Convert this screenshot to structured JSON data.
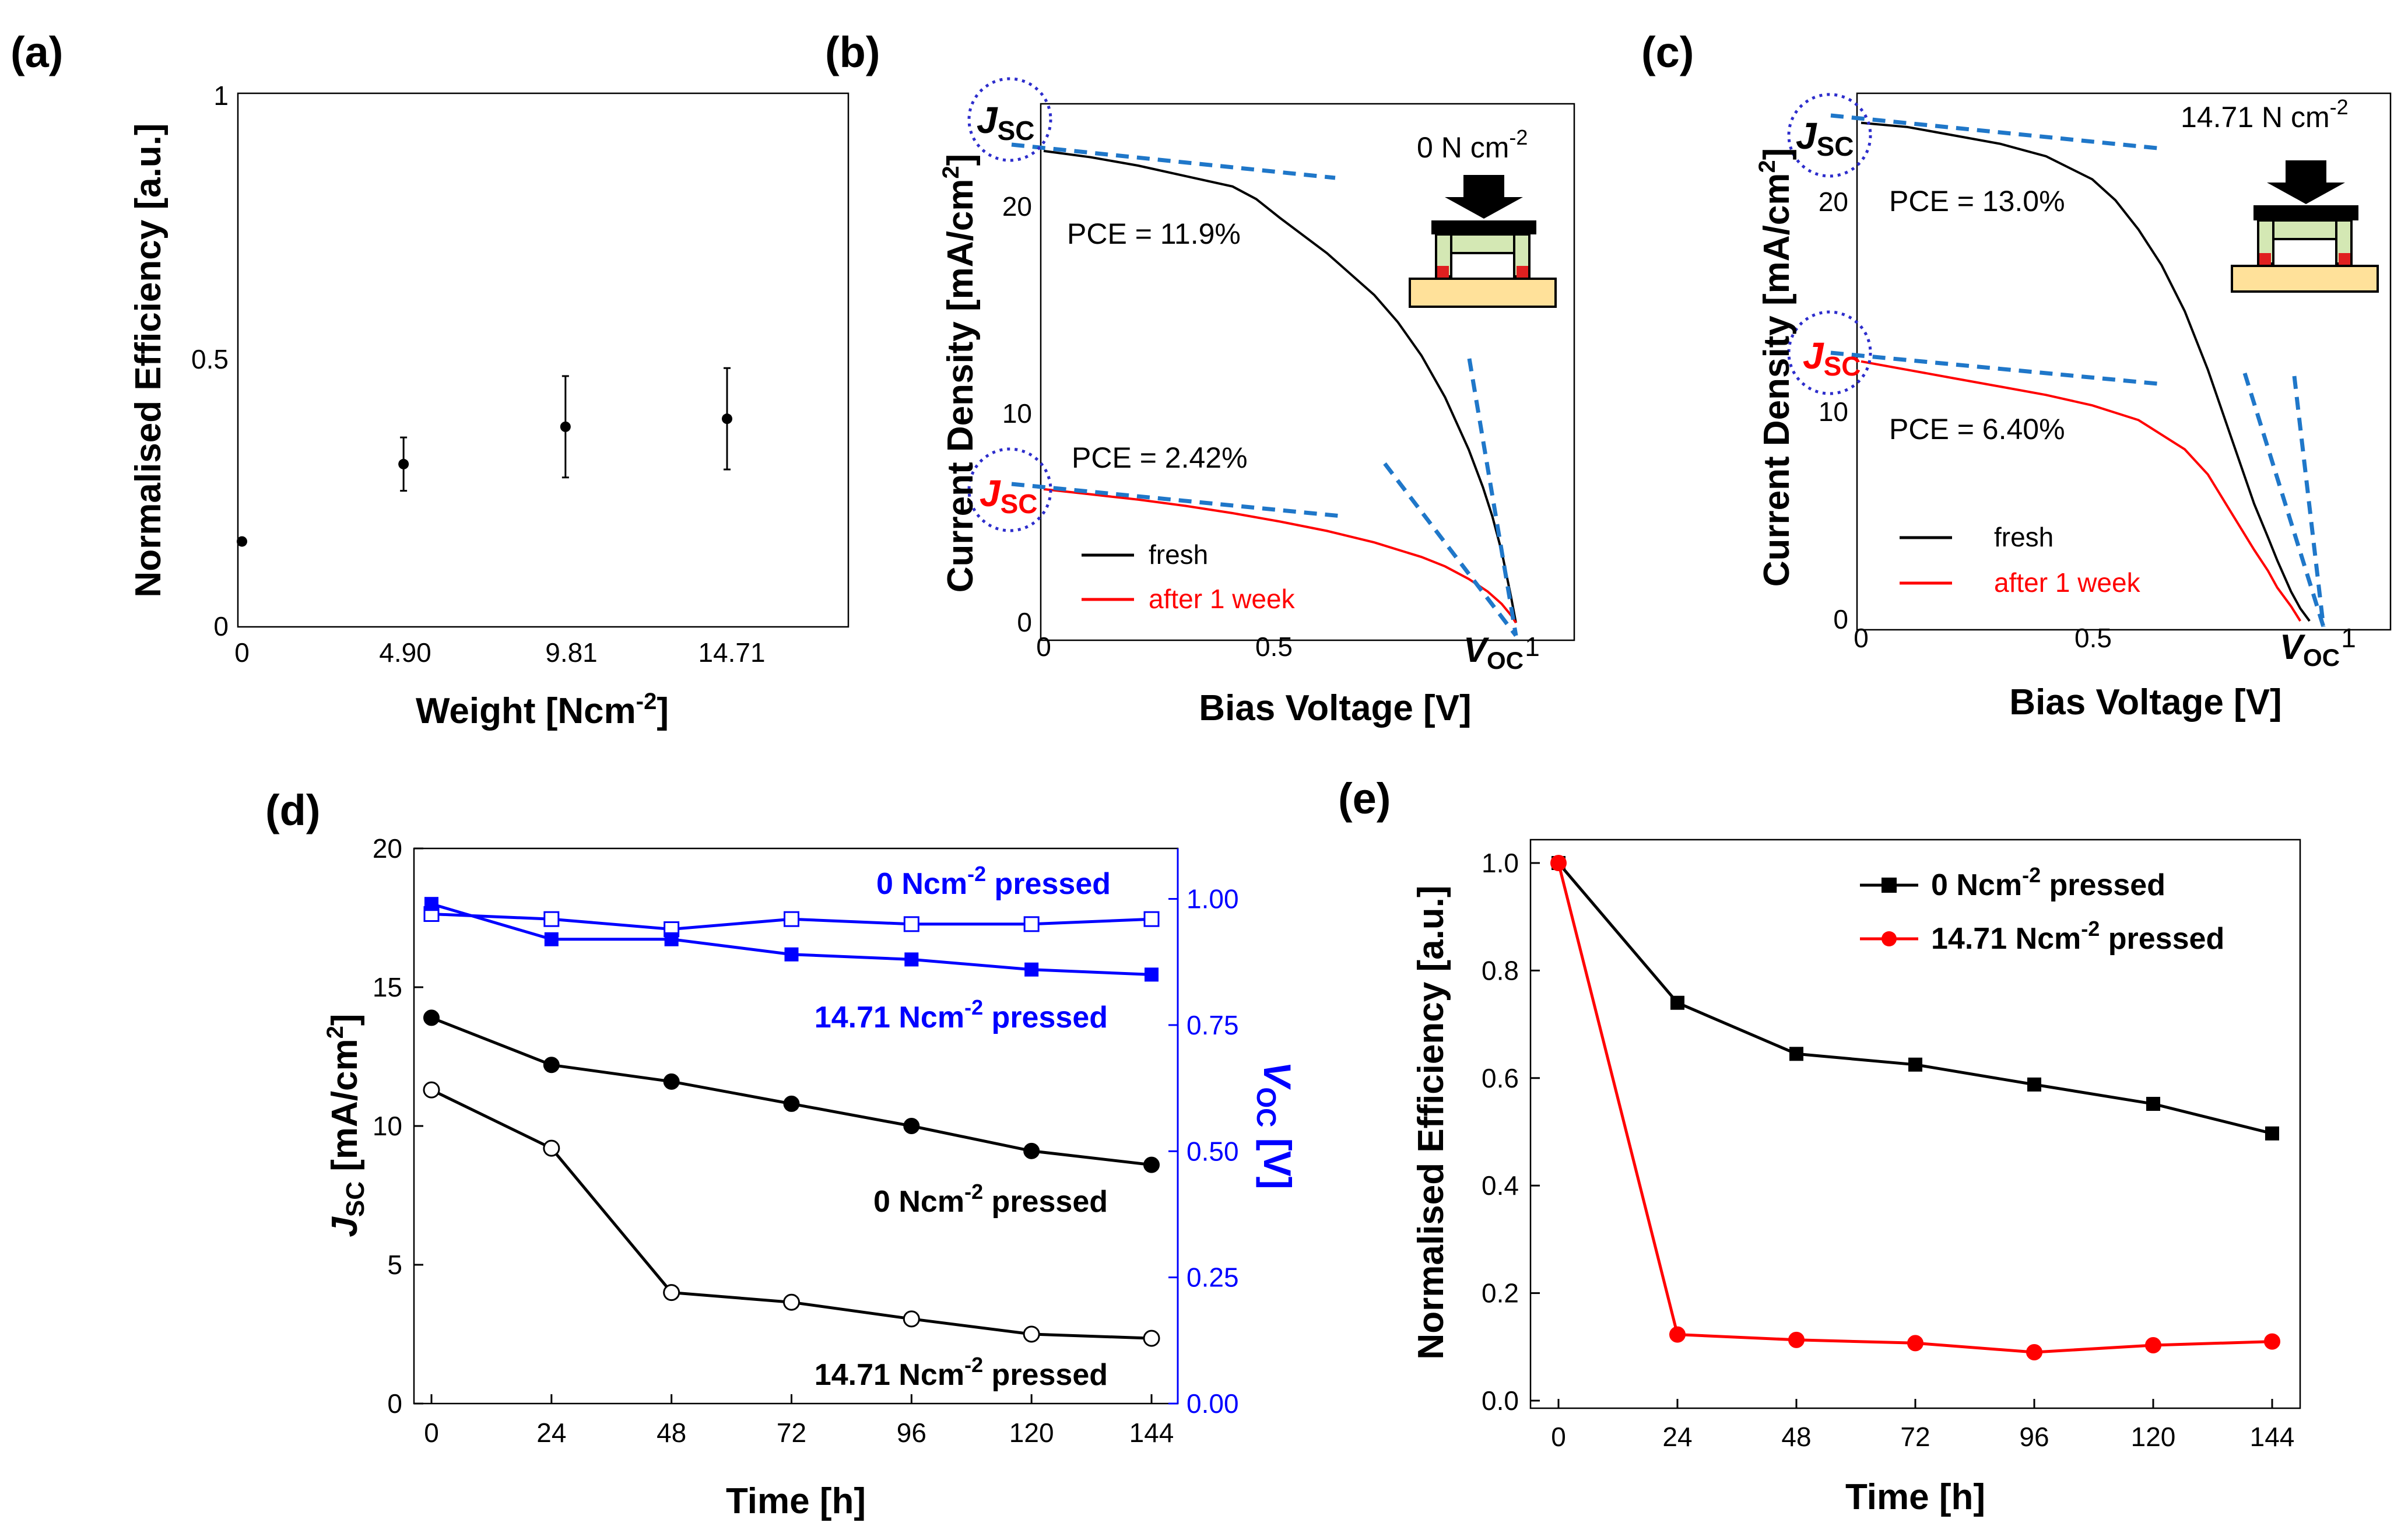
{
  "panels": [
    "(a)",
    "(b)",
    "(c)",
    "(d)",
    "(e)"
  ],
  "chart_data": [
    {
      "id": "a",
      "type": "scatter",
      "xlabel_main": "Weight [Ncm",
      "xlabel_sup": "-2",
      "xlabel_end": "]",
      "ylabel": "Normalised Efficiency [a.u.]",
      "ylim": [
        0,
        1
      ],
      "yticks": [
        "0",
        "0.5",
        "1"
      ],
      "xticks": [
        "0",
        "4.90",
        "9.81",
        "14.71"
      ],
      "x": [
        0,
        4.9,
        9.81,
        14.71
      ],
      "values": [
        0.16,
        0.305,
        0.375,
        0.39
      ],
      "errors": [
        0.0,
        0.05,
        0.095,
        0.095
      ]
    },
    {
      "id": "b",
      "type": "line",
      "xlabel": "Bias Voltage [V]",
      "ylabel_main": "Current Density [mA/cm",
      "ylabel_sup": "2",
      "ylabel_end": "]",
      "xlim": [
        0,
        1.15
      ],
      "ylim": [
        0,
        25
      ],
      "xticks": [
        "0",
        "0.5",
        "1"
      ],
      "yticks": [
        "0",
        "10",
        "20"
      ],
      "jsc_symbol": "J",
      "jsc_sub": "SC",
      "voc_symbol": "V",
      "voc_sub": "OC",
      "weight_main": "0 N cm",
      "weight_sup": "-2",
      "pce_fresh": "PCE = 11.9%",
      "pce_aged": "PCE = 2.42%",
      "legend": [
        "fresh",
        "after 1 week"
      ],
      "series": [
        {
          "name": "fresh",
          "color": "#000000",
          "x": [
            0,
            0.1,
            0.2,
            0.3,
            0.4,
            0.45,
            0.5,
            0.6,
            0.7,
            0.75,
            0.8,
            0.85,
            0.9,
            0.93,
            0.95,
            0.97,
            0.99,
            1.0
          ],
          "y": [
            22.6,
            22.3,
            21.9,
            21.4,
            20.9,
            20.3,
            19.4,
            17.7,
            15.7,
            14.4,
            12.8,
            10.8,
            8.3,
            6.5,
            5.1,
            3.4,
            1.2,
            0
          ]
        },
        {
          "name": "after 1 week",
          "color": "#ff0000",
          "x": [
            0,
            0.1,
            0.2,
            0.3,
            0.4,
            0.5,
            0.6,
            0.7,
            0.8,
            0.85,
            0.9,
            0.94,
            0.97,
            0.99,
            1.0
          ],
          "y": [
            6.4,
            6.15,
            5.9,
            5.6,
            5.25,
            4.85,
            4.4,
            3.85,
            3.15,
            2.7,
            2.1,
            1.5,
            0.9,
            0.35,
            0
          ]
        }
      ]
    },
    {
      "id": "c",
      "type": "line",
      "xlabel": "Bias Voltage [V]",
      "ylabel_main": "Current Density [mA/cm",
      "ylabel_sup": "2",
      "ylabel_end": "]",
      "xlim": [
        0,
        1.15
      ],
      "ylim": [
        0,
        25
      ],
      "xticks": [
        "0",
        "0.5",
        "1"
      ],
      "yticks": [
        "0",
        "10",
        "20"
      ],
      "jsc_symbol": "J",
      "jsc_sub": "SC",
      "voc_symbol": "V",
      "voc_sub": "OC",
      "weight_main": "14.71 N cm",
      "weight_sup": "-2",
      "pce_fresh": "PCE = 13.0%",
      "pce_aged": "PCE = 6.40%",
      "legend": [
        "fresh",
        "after 1 week"
      ],
      "series": [
        {
          "name": "fresh",
          "color": "#000000",
          "x": [
            0,
            0.1,
            0.2,
            0.3,
            0.4,
            0.5,
            0.55,
            0.6,
            0.65,
            0.7,
            0.75,
            0.8,
            0.85,
            0.88,
            0.9,
            0.93,
            0.95,
            0.97
          ],
          "y": [
            23.8,
            23.6,
            23.2,
            22.8,
            22.2,
            21.1,
            20.1,
            18.7,
            17.0,
            14.8,
            12.0,
            8.8,
            5.6,
            4.0,
            2.9,
            1.4,
            0.6,
            0
          ]
        },
        {
          "name": "after 1 week",
          "color": "#ff0000",
          "x": [
            0,
            0.1,
            0.2,
            0.3,
            0.4,
            0.5,
            0.6,
            0.7,
            0.75,
            0.8,
            0.85,
            0.88,
            0.9,
            0.93,
            0.95
          ],
          "y": [
            12.4,
            12.0,
            11.6,
            11.2,
            10.8,
            10.3,
            9.6,
            8.2,
            7.0,
            5.2,
            3.4,
            2.4,
            1.6,
            0.7,
            0
          ]
        }
      ]
    },
    {
      "id": "d",
      "type": "line",
      "xlabel": "Time [h]",
      "ylabel_left_symbol": "J",
      "ylabel_left_sub": "SC",
      "ylabel_left_main": " [mA/cm",
      "ylabel_left_sup": "2",
      "ylabel_left_end": "]",
      "ylabel_right_symbol": "V",
      "ylabel_right_sub": "OC",
      "ylabel_right_end": " [V]",
      "x": [
        0,
        24,
        48,
        72,
        96,
        120,
        144
      ],
      "xticks": [
        "0",
        "24",
        "48",
        "72",
        "96",
        "120",
        "144"
      ],
      "ylim_left": [
        0,
        20
      ],
      "ylim_right": [
        0,
        1.1
      ],
      "yticks_left": [
        "0",
        "5",
        "10",
        "15",
        "20"
      ],
      "yticks_right": [
        "0.00",
        "0.25",
        "0.50",
        "0.75",
        "1.00"
      ],
      "label_voc_0_main": "0 Ncm",
      "label_voc_0_sup": "-2",
      "label_voc_0_end": " pressed",
      "label_voc_p_main": "14.71 Ncm",
      "label_voc_p_sup": "-2",
      "label_voc_p_end": " pressed",
      "label_jsc_0_main": "0 Ncm",
      "label_jsc_0_sup": "-2",
      "label_jsc_0_end": " pressed",
      "label_jsc_p_main": "14.71 Ncm",
      "label_jsc_p_sup": "-2",
      "label_jsc_p_end": " pressed",
      "series": [
        {
          "name": "Jsc 0 Ncm-2 pressed",
          "axis": "left",
          "color": "#000000",
          "marker": "circle-filled",
          "values": [
            13.9,
            12.2,
            11.6,
            10.8,
            10.0,
            9.1,
            8.6
          ]
        },
        {
          "name": "Jsc 14.71 Ncm-2 pressed",
          "axis": "left",
          "color": "#000000",
          "marker": "circle-open",
          "values": [
            11.3,
            9.2,
            4.0,
            3.65,
            3.05,
            2.5,
            2.35
          ]
        },
        {
          "name": "Voc 0 Ncm-2 pressed",
          "axis": "right",
          "color": "#0000ff",
          "marker": "square-open",
          "values": [
            0.97,
            0.96,
            0.94,
            0.96,
            0.95,
            0.95,
            0.96
          ]
        },
        {
          "name": "Voc 14.71 Ncm-2 pressed",
          "axis": "right",
          "color": "#0000ff",
          "marker": "square-filled",
          "values": [
            0.99,
            0.92,
            0.92,
            0.89,
            0.88,
            0.86,
            0.85
          ]
        }
      ]
    },
    {
      "id": "e",
      "type": "line",
      "xlabel": "Time [h]",
      "ylabel": "Normalised Efficiency [a.u.]",
      "x": [
        0,
        24,
        48,
        72,
        96,
        120,
        144
      ],
      "xticks": [
        "0",
        "24",
        "48",
        "72",
        "96",
        "120",
        "144"
      ],
      "ylim": [
        0,
        1.05
      ],
      "yticks": [
        "0.0",
        "0.2",
        "0.4",
        "0.6",
        "0.8",
        "1.0"
      ],
      "legend_main": [
        "0 Ncm",
        "14.71 Ncm"
      ],
      "legend_sup": "-2",
      "legend_end": " pressed",
      "series": [
        {
          "name": "0 Ncm-2 pressed",
          "color": "#000000",
          "marker": "square-filled",
          "values": [
            1.0,
            0.74,
            0.645,
            0.625,
            0.588,
            0.552,
            0.497
          ]
        },
        {
          "name": "14.71 Ncm-2 pressed",
          "color": "#ff0000",
          "marker": "circle-filled",
          "values": [
            1.0,
            0.123,
            0.113,
            0.107,
            0.09,
            0.103,
            0.11
          ]
        }
      ]
    }
  ]
}
